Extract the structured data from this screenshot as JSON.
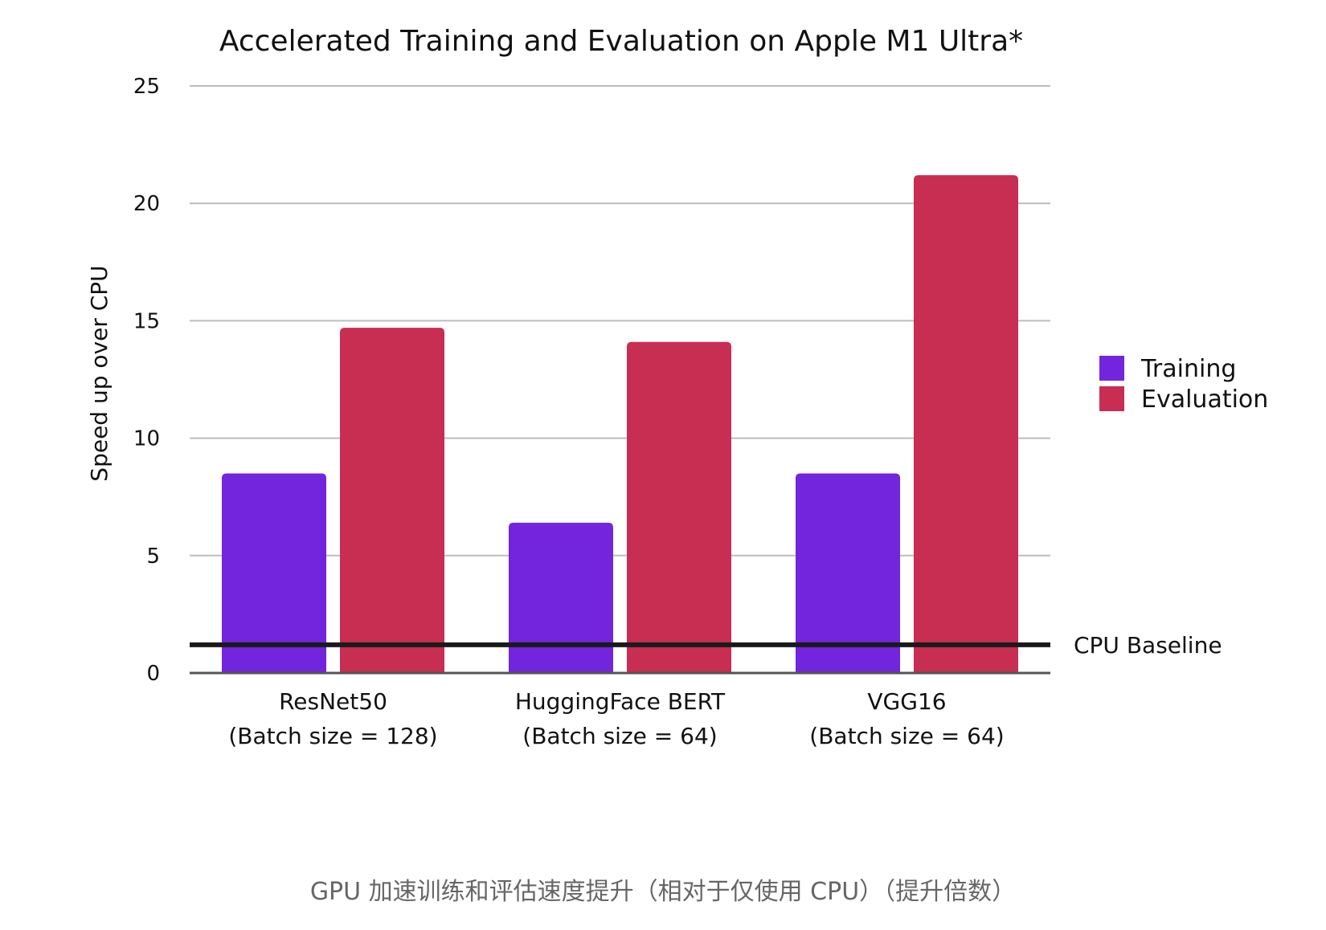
{
  "chart_data": {
    "type": "bar",
    "title": "Accelerated Training and Evaluation on Apple M1 Ultra*",
    "ylabel": "Speed up over CPU",
    "xlabel": "",
    "ylim": [
      0,
      25
    ],
    "yticks": [
      0,
      5,
      10,
      15,
      20,
      25
    ],
    "grid": true,
    "legend_position": "right",
    "categories": [
      {
        "name": "ResNet50",
        "sub": "(Batch size = 128)"
      },
      {
        "name": "HuggingFace BERT",
        "sub": "(Batch size = 64)"
      },
      {
        "name": "VGG16",
        "sub": "(Batch size = 64)"
      }
    ],
    "series": [
      {
        "name": "Training",
        "color": "#7225DC",
        "values": [
          8.5,
          6.4,
          8.5
        ]
      },
      {
        "name": "Evaluation",
        "color": "#C82D52",
        "values": [
          14.7,
          14.1,
          21.2
        ]
      }
    ],
    "baseline": {
      "label": "CPU Baseline",
      "value": 1.2
    }
  },
  "caption": "GPU 加速训练和评估速度提升（相对于仅使用 CPU）（提升倍数）"
}
